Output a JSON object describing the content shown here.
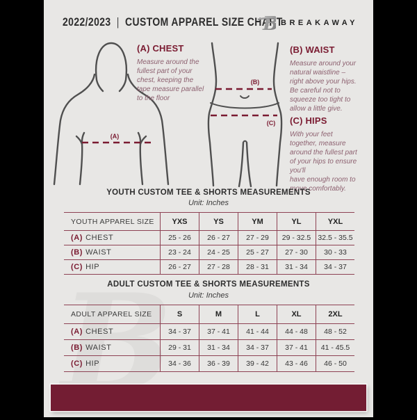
{
  "header": {
    "year": "2022/2023",
    "separator": "|",
    "title": "CUSTOM APPAREL SIZE CHART",
    "brand": "BREAKAWAY",
    "logo_letter": "B"
  },
  "colors": {
    "maroon": "#731d33",
    "page_bg": "#e8e7e5",
    "table_border": "#8d4153",
    "instruction_text": "#8d6170",
    "outline_gray": "#4f4f4f"
  },
  "diagram_labels": {
    "chest": "(A)",
    "waist": "(B)",
    "hips": "(C)"
  },
  "measurements": {
    "chest": {
      "heading": "(A) CHEST",
      "body": "Measure around the\nfullest part of your\nchest, keeping the\ntape measure parallel\nto the floor"
    },
    "waist": {
      "heading": "(B) WAIST",
      "body": "Measure around your\nnatural waistline –\nright above your hips.\nBe careful not to\nsqueeze too tight to\nallow a little give."
    },
    "hips": {
      "heading": "(C) HIPS",
      "body": "With your feet\ntogether, measure\naround the fullest part\nof your hips to ensure\nyou'll\nhave enough room to\nmove comfortably."
    }
  },
  "tables": [
    {
      "id": "youth",
      "title": "YOUTH CUSTOM TEE & SHORTS MEASUREMENTS",
      "unit": "Unit: Inches",
      "label_header": "YOUTH APPAREL SIZE",
      "size_headers": [
        "YXS",
        "YS",
        "YM",
        "YL",
        "YXL"
      ],
      "rows": [
        {
          "prefix": "(A)",
          "label": "CHEST",
          "values": [
            "25 - 26",
            "26 - 27",
            "27 - 29",
            "29 - 32.5",
            "32.5 - 35.5"
          ]
        },
        {
          "prefix": "(B)",
          "label": "WAIST",
          "values": [
            "23 - 24",
            "24 - 25",
            "25 - 27",
            "27 - 30",
            "30 - 33"
          ]
        },
        {
          "prefix": "(C)",
          "label": "HIP",
          "values": [
            "26 - 27",
            "27 - 28",
            "28 - 31",
            "31 - 34",
            "34 - 37"
          ]
        }
      ]
    },
    {
      "id": "adult",
      "title": "ADULT CUSTOM TEE & SHORTS MEASUREMENTS",
      "unit": "Unit: Inches",
      "label_header": "ADULT APPAREL SIZE",
      "size_headers": [
        "S",
        "M",
        "L",
        "XL",
        "2XL"
      ],
      "rows": [
        {
          "prefix": "(A)",
          "label": "CHEST",
          "values": [
            "34 - 37",
            "37 - 41",
            "41 - 44",
            "44 - 48",
            "48 - 52"
          ]
        },
        {
          "prefix": "(B)",
          "label": "WAIST",
          "values": [
            "29 - 31",
            "31 - 34",
            "34 - 37",
            "37 - 41",
            "41 - 45.5"
          ]
        },
        {
          "prefix": "(C)",
          "label": "HIP",
          "values": [
            "34 - 36",
            "36 - 39",
            "39 - 42",
            "43 - 46",
            "46 - 50"
          ]
        }
      ]
    }
  ]
}
